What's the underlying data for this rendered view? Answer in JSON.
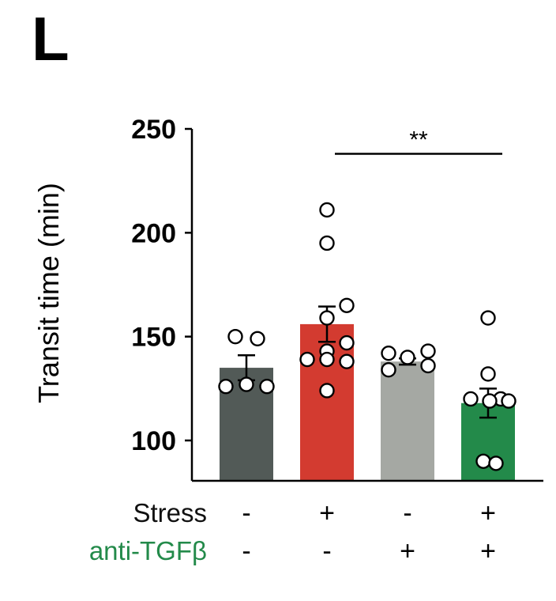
{
  "panel_label": "L",
  "chart_data": {
    "type": "bar",
    "ylabel": "Transit time (min)",
    "ylim": [
      83,
      250
    ],
    "yticks": [
      100,
      150,
      200,
      250
    ],
    "ytick_labels": [
      "100",
      "150",
      "200",
      "250"
    ],
    "grid": false,
    "categories": [
      "Stress - / anti-TGFβ -",
      "Stress + / anti-TGFβ -",
      "Stress - / anti-TGFβ +",
      "Stress + / anti-TGFβ +"
    ],
    "values": [
      135,
      156,
      138,
      118
    ],
    "sem": [
      6,
      8.5,
      1.5,
      7
    ],
    "bar_colors": [
      "#525a57",
      "#d33b30",
      "#a5a8a3",
      "#238a4a"
    ],
    "points": [
      [
        150,
        149,
        126,
        127,
        126
      ],
      [
        211,
        195,
        165,
        159,
        147,
        143,
        139,
        139,
        138,
        124
      ],
      [
        142,
        140,
        143,
        134,
        136
      ],
      [
        159,
        132,
        120,
        120,
        119,
        119,
        90,
        89
      ]
    ],
    "conditions": [
      {
        "name": "Stress",
        "color": "#111111",
        "signs": [
          "-",
          "+",
          "-",
          "+"
        ]
      },
      {
        "name": "anti-TGFβ",
        "color": "#238a4a",
        "signs": [
          "-",
          "-",
          "+",
          "+"
        ]
      }
    ],
    "significance": {
      "from": 1,
      "to": 3,
      "label": "**",
      "y": 238
    }
  }
}
